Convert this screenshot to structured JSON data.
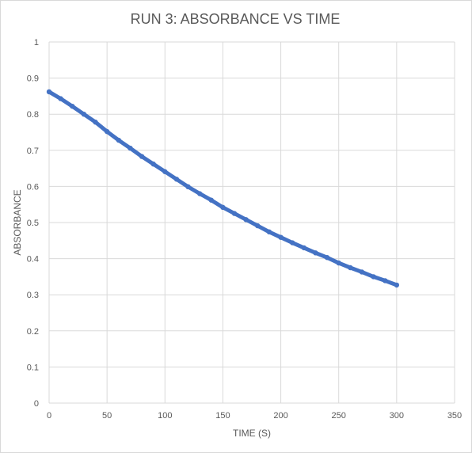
{
  "chart_data": {
    "type": "scatter",
    "title": "RUN 3: ABSORBANCE VS TIME",
    "xlabel": "TIME (S)",
    "ylabel": "ABSORBANCE",
    "xlim": [
      0,
      350
    ],
    "ylim": [
      0,
      1
    ],
    "xticks": [
      0,
      50,
      100,
      150,
      200,
      250,
      300,
      350
    ],
    "yticks": [
      0,
      0.1,
      0.2,
      0.3,
      0.4,
      0.5,
      0.6,
      0.7,
      0.8,
      0.9,
      1
    ],
    "grid": true,
    "legend": "none",
    "series": [
      {
        "color": "#4472c4",
        "x": [
          0,
          10,
          20,
          30,
          40,
          50,
          60,
          70,
          80,
          90,
          100,
          110,
          120,
          130,
          140,
          150,
          160,
          170,
          180,
          190,
          200,
          210,
          220,
          230,
          240,
          250,
          260,
          270,
          280,
          290,
          300
        ],
        "y": [
          0.862,
          0.843,
          0.822,
          0.8,
          0.778,
          0.752,
          0.728,
          0.706,
          0.683,
          0.662,
          0.641,
          0.62,
          0.599,
          0.58,
          0.562,
          0.542,
          0.525,
          0.508,
          0.491,
          0.474,
          0.459,
          0.444,
          0.43,
          0.416,
          0.403,
          0.388,
          0.375,
          0.363,
          0.35,
          0.339,
          0.327
        ]
      }
    ]
  }
}
